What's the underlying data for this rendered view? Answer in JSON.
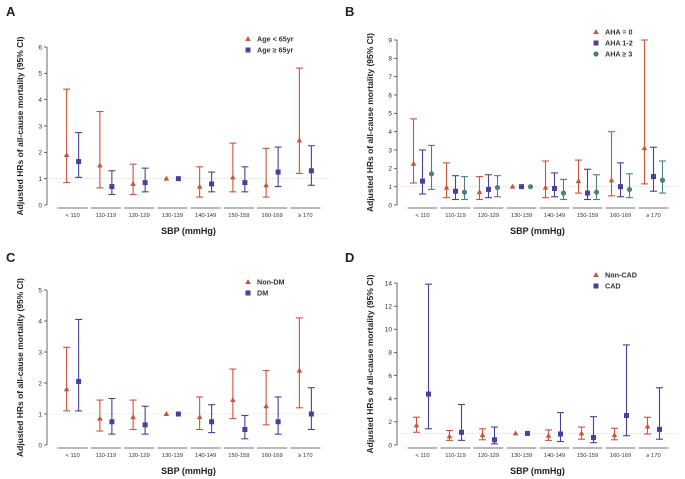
{
  "figure": {
    "background": "#ffffff"
  },
  "chart_data": [
    {
      "panel": "A",
      "type": "scatter",
      "chart_style": "forest-plot",
      "xlabel": "SBP (mmHg)",
      "ylabel": "Adjusted HRs of all-cause mortality  (95% CI)",
      "ylim": [
        0,
        6
      ],
      "yticks": [
        0,
        1,
        2,
        3,
        4,
        5,
        6
      ],
      "reference_line": 1,
      "categories": [
        "< 110",
        "110-119",
        "120-129",
        "130-139",
        "140-149",
        "150-159",
        "160-169",
        "≥ 170"
      ],
      "legend_position": "top-right",
      "series": [
        {
          "name": "Age < 65yr",
          "marker": "triangle",
          "color": "#c8553d",
          "values": [
            1.9,
            1.5,
            0.8,
            1.0,
            0.7,
            1.05,
            0.75,
            2.45
          ],
          "lower": [
            0.85,
            0.65,
            0.4,
            1.0,
            0.3,
            0.5,
            0.3,
            1.2
          ],
          "upper": [
            4.4,
            3.55,
            1.55,
            1.0,
            1.45,
            2.35,
            2.15,
            5.2
          ]
        },
        {
          "name": "Age ≥ 65yr",
          "marker": "square",
          "color": "#4b3f9a",
          "values": [
            1.65,
            0.7,
            0.85,
            1.0,
            0.8,
            0.85,
            1.25,
            1.3
          ],
          "lower": [
            1.05,
            0.4,
            0.5,
            1.0,
            0.5,
            0.5,
            0.7,
            0.75
          ],
          "upper": [
            2.75,
            1.3,
            1.4,
            1.0,
            1.25,
            1.45,
            2.2,
            2.25
          ]
        }
      ]
    },
    {
      "panel": "B",
      "type": "scatter",
      "chart_style": "forest-plot",
      "xlabel": "SBP (mmHg)",
      "ylabel": "Adjusted HRs of all-cause mortality  (95% CI)",
      "ylim": [
        0,
        9
      ],
      "yticks": [
        0,
        1,
        2,
        3,
        4,
        5,
        6,
        7,
        8,
        9
      ],
      "reference_line": 1,
      "categories": [
        "< 110",
        "110-119",
        "120-129",
        "130-139",
        "140-149",
        "150-159",
        "160-169",
        "≥ 170"
      ],
      "legend_position": "top-right",
      "series": [
        {
          "name": "AHA = 0",
          "marker": "triangle",
          "color": "#c8553d",
          "values": [
            2.25,
            0.95,
            0.7,
            1.0,
            0.95,
            1.3,
            1.35,
            3.1
          ],
          "lower": [
            1.2,
            0.4,
            0.3,
            1.0,
            0.4,
            0.65,
            0.5,
            1.15
          ],
          "upper": [
            4.7,
            2.3,
            1.55,
            1.0,
            2.4,
            2.45,
            4.0,
            9.0
          ]
        },
        {
          "name": "AHA 1-2",
          "marker": "square",
          "color": "#4b3f9a",
          "values": [
            1.3,
            0.75,
            0.85,
            1.0,
            0.9,
            0.65,
            1.0,
            1.55
          ],
          "lower": [
            0.6,
            0.3,
            0.4,
            1.0,
            0.45,
            0.3,
            0.45,
            0.75
          ],
          "upper": [
            3.0,
            1.6,
            1.65,
            1.0,
            1.75,
            1.95,
            2.3,
            3.15
          ]
        },
        {
          "name": "AHA ≥ 3",
          "marker": "circle",
          "color": "#4f7f7d",
          "values": [
            1.7,
            0.7,
            0.95,
            1.0,
            0.65,
            0.7,
            0.85,
            1.35
          ],
          "lower": [
            0.85,
            0.3,
            0.45,
            1.0,
            0.3,
            0.3,
            0.4,
            0.65
          ],
          "upper": [
            3.25,
            1.55,
            1.6,
            1.0,
            1.4,
            1.65,
            1.7,
            2.4
          ]
        }
      ]
    },
    {
      "panel": "C",
      "type": "scatter",
      "chart_style": "forest-plot",
      "xlabel": "SBP (mmHg)",
      "ylabel": "Adjusted HRs of all-cause mortality  (95% CI)",
      "ylim": [
        0,
        5
      ],
      "yticks": [
        0,
        1,
        2,
        3,
        4,
        5
      ],
      "reference_line": 1,
      "categories": [
        "< 110",
        "110-119",
        "120-129",
        "130-139",
        "140-149",
        "150-159",
        "160-169",
        "≥ 170"
      ],
      "legend_position": "top-right",
      "series": [
        {
          "name": "Non-DM",
          "marker": "triangle",
          "color": "#c8553d",
          "values": [
            1.8,
            0.85,
            0.9,
            1.0,
            0.9,
            1.45,
            1.25,
            2.4
          ],
          "lower": [
            1.1,
            0.45,
            0.5,
            1.0,
            0.5,
            0.85,
            0.65,
            1.2
          ],
          "upper": [
            3.15,
            1.45,
            1.45,
            1.0,
            1.55,
            2.45,
            2.4,
            4.1
          ]
        },
        {
          "name": "DM",
          "marker": "square",
          "color": "#4b3f9a",
          "values": [
            2.05,
            0.75,
            0.65,
            1.0,
            0.75,
            0.5,
            0.75,
            1.0
          ],
          "lower": [
            1.1,
            0.35,
            0.35,
            1.0,
            0.4,
            0.2,
            0.35,
            0.5
          ],
          "upper": [
            4.05,
            1.5,
            1.25,
            1.0,
            1.3,
            0.95,
            1.55,
            1.85
          ]
        }
      ]
    },
    {
      "panel": "D",
      "type": "scatter",
      "chart_style": "forest-plot",
      "xlabel": "SBP (mmHg)",
      "ylabel": "Adjusted HRs of all-cause mortality  (95% CI)",
      "ylim": [
        0,
        14
      ],
      "yticks": [
        0,
        2,
        4,
        6,
        8,
        10,
        12,
        14
      ],
      "reference_line": 1,
      "categories": [
        "< 110",
        "110-119",
        "120-129",
        "130-139",
        "140-149",
        "150-159",
        "160-169",
        "≥ 170"
      ],
      "legend_position": "top-right",
      "series": [
        {
          "name": "Non-CAD",
          "marker": "triangle",
          "color": "#c8553d",
          "values": [
            1.7,
            0.75,
            0.85,
            1.0,
            0.8,
            1.0,
            0.85,
            1.6
          ],
          "lower": [
            1.1,
            0.4,
            0.45,
            1.0,
            0.4,
            0.5,
            0.45,
            0.95
          ],
          "upper": [
            2.4,
            1.25,
            1.4,
            1.0,
            1.3,
            1.55,
            1.45,
            2.4
          ]
        },
        {
          "name": "CAD",
          "marker": "square",
          "color": "#4b3f9a",
          "values": [
            4.4,
            1.1,
            0.45,
            1.0,
            0.95,
            0.65,
            2.55,
            1.35
          ],
          "lower": [
            1.4,
            0.4,
            0.1,
            1.0,
            0.3,
            0.2,
            0.8,
            0.5
          ],
          "upper": [
            13.9,
            3.5,
            1.55,
            1.0,
            2.8,
            2.45,
            8.65,
            4.95
          ]
        }
      ]
    }
  ]
}
